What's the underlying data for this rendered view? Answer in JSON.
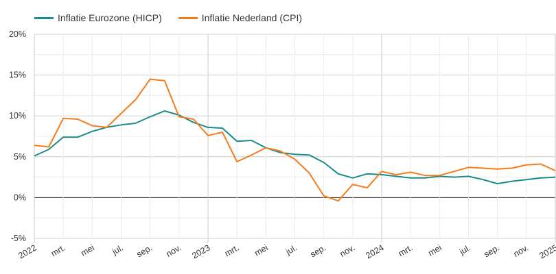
{
  "chart_data": {
    "type": "line",
    "title": "",
    "xlabel": "",
    "ylabel": "",
    "ylim": [
      -5,
      20
    ],
    "y_ticks": [
      -5,
      0,
      5,
      10,
      15,
      20
    ],
    "y_tick_labels": [
      "-5%",
      "0%",
      "5%",
      "10%",
      "15%",
      "20%"
    ],
    "x_range": [
      "2022-01",
      "2025-01"
    ],
    "x_tick_labels": [
      "2022",
      "mrt.",
      "mei",
      "jul.",
      "sep.",
      "nov.",
      "2023",
      "mrt.",
      "mei",
      "jul.",
      "sep.",
      "nov.",
      "2024",
      "mrt.",
      "mei",
      "jul.",
      "sep.",
      "nov.",
      "2025"
    ],
    "grid": true,
    "legend_position": "top-left",
    "x": [
      "2022-01",
      "2022-02",
      "2022-03",
      "2022-04",
      "2022-05",
      "2022-06",
      "2022-07",
      "2022-08",
      "2022-09",
      "2022-10",
      "2022-11",
      "2022-12",
      "2023-01",
      "2023-02",
      "2023-03",
      "2023-04",
      "2023-05",
      "2023-06",
      "2023-07",
      "2023-08",
      "2023-09",
      "2023-10",
      "2023-11",
      "2023-12",
      "2024-01",
      "2024-02",
      "2024-03",
      "2024-04",
      "2024-05",
      "2024-06",
      "2024-07",
      "2024-08",
      "2024-09",
      "2024-10",
      "2024-11",
      "2024-12",
      "2025-01"
    ],
    "series": [
      {
        "name": "Inflatie Eurozone (HICP)",
        "color": "#1a8a8a",
        "values": [
          5.1,
          5.9,
          7.4,
          7.4,
          8.1,
          8.6,
          8.9,
          9.1,
          9.9,
          10.6,
          10.1,
          9.2,
          8.6,
          8.5,
          6.9,
          7.0,
          6.1,
          5.5,
          5.3,
          5.2,
          4.3,
          2.9,
          2.4,
          2.9,
          2.8,
          2.6,
          2.4,
          2.4,
          2.6,
          2.5,
          2.6,
          2.2,
          1.7,
          2.0,
          2.2,
          2.4,
          2.5
        ]
      },
      {
        "name": "Inflatie Nederland (CPI)",
        "color": "#f47c1c",
        "values": [
          6.4,
          6.2,
          9.7,
          9.6,
          8.8,
          8.6,
          10.3,
          12.0,
          14.5,
          14.3,
          9.9,
          9.6,
          7.6,
          8.0,
          4.4,
          5.2,
          6.1,
          5.7,
          4.7,
          3.0,
          0.2,
          -0.4,
          1.6,
          1.2,
          3.2,
          2.8,
          3.1,
          2.7,
          2.7,
          3.2,
          3.7,
          3.6,
          3.5,
          3.6,
          4.0,
          4.1,
          3.3
        ]
      }
    ]
  }
}
